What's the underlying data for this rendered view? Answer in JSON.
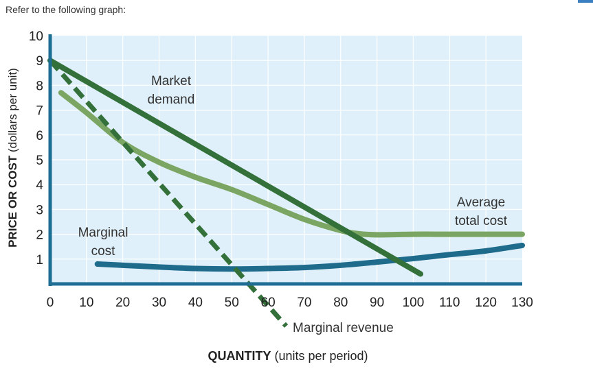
{
  "prompt": "Refer to the following graph:",
  "chart_data": {
    "type": "line",
    "title": "",
    "xlabel_bold": "QUANTITY",
    "xlabel_rest": "(units per period)",
    "ylabel_bold": "PRICE OR COST",
    "ylabel_rest": "(dollars per unit)",
    "xlim": [
      0,
      130
    ],
    "ylim": [
      0,
      10
    ],
    "x_ticks": [
      "0",
      "10",
      "20",
      "30",
      "40",
      "50",
      "60",
      "70",
      "80",
      "90",
      "100",
      "110",
      "120",
      "130"
    ],
    "y_ticks": [
      "1",
      "2",
      "3",
      "4",
      "5",
      "6",
      "7",
      "8",
      "9",
      "10"
    ],
    "background": "#dff0fa",
    "grid_color": "#ffffff",
    "axis_color": "#1e6e94",
    "series": [
      {
        "name": "Market demand",
        "label_lines": [
          "Market",
          "demand"
        ],
        "color": "#33703a",
        "dash": false,
        "points": [
          [
            0,
            9.0
          ],
          [
            102,
            0.4
          ]
        ]
      },
      {
        "name": "Marginal revenue",
        "label_lines": [
          "Marginal revenue"
        ],
        "color": "#33703a",
        "dash": true,
        "points": [
          [
            0,
            9.0
          ],
          [
            65,
            -1.7
          ]
        ]
      },
      {
        "name": "Average total cost",
        "label_lines": [
          "Average",
          "total cost"
        ],
        "color": "#7aa562",
        "dash": false,
        "points": [
          [
            3,
            7.7
          ],
          [
            10,
            6.9
          ],
          [
            20,
            5.7
          ],
          [
            30,
            4.9
          ],
          [
            40,
            4.3
          ],
          [
            50,
            3.8
          ],
          [
            60,
            3.2
          ],
          [
            70,
            2.6
          ],
          [
            80,
            2.15
          ],
          [
            85,
            2.02
          ],
          [
            90,
            1.98
          ],
          [
            100,
            2.0
          ],
          [
            110,
            2.0
          ],
          [
            120,
            2.0
          ],
          [
            130,
            2.0
          ]
        ]
      },
      {
        "name": "Marginal cost",
        "label_lines": [
          "Marginal",
          "cost"
        ],
        "color": "#1f6b8c",
        "dash": false,
        "points": [
          [
            13,
            0.8
          ],
          [
            20,
            0.75
          ],
          [
            30,
            0.68
          ],
          [
            40,
            0.62
          ],
          [
            50,
            0.6
          ],
          [
            60,
            0.62
          ],
          [
            70,
            0.66
          ],
          [
            80,
            0.75
          ],
          [
            90,
            0.88
          ],
          [
            100,
            1.02
          ],
          [
            110,
            1.18
          ],
          [
            120,
            1.33
          ],
          [
            130,
            1.55
          ]
        ]
      }
    ]
  }
}
